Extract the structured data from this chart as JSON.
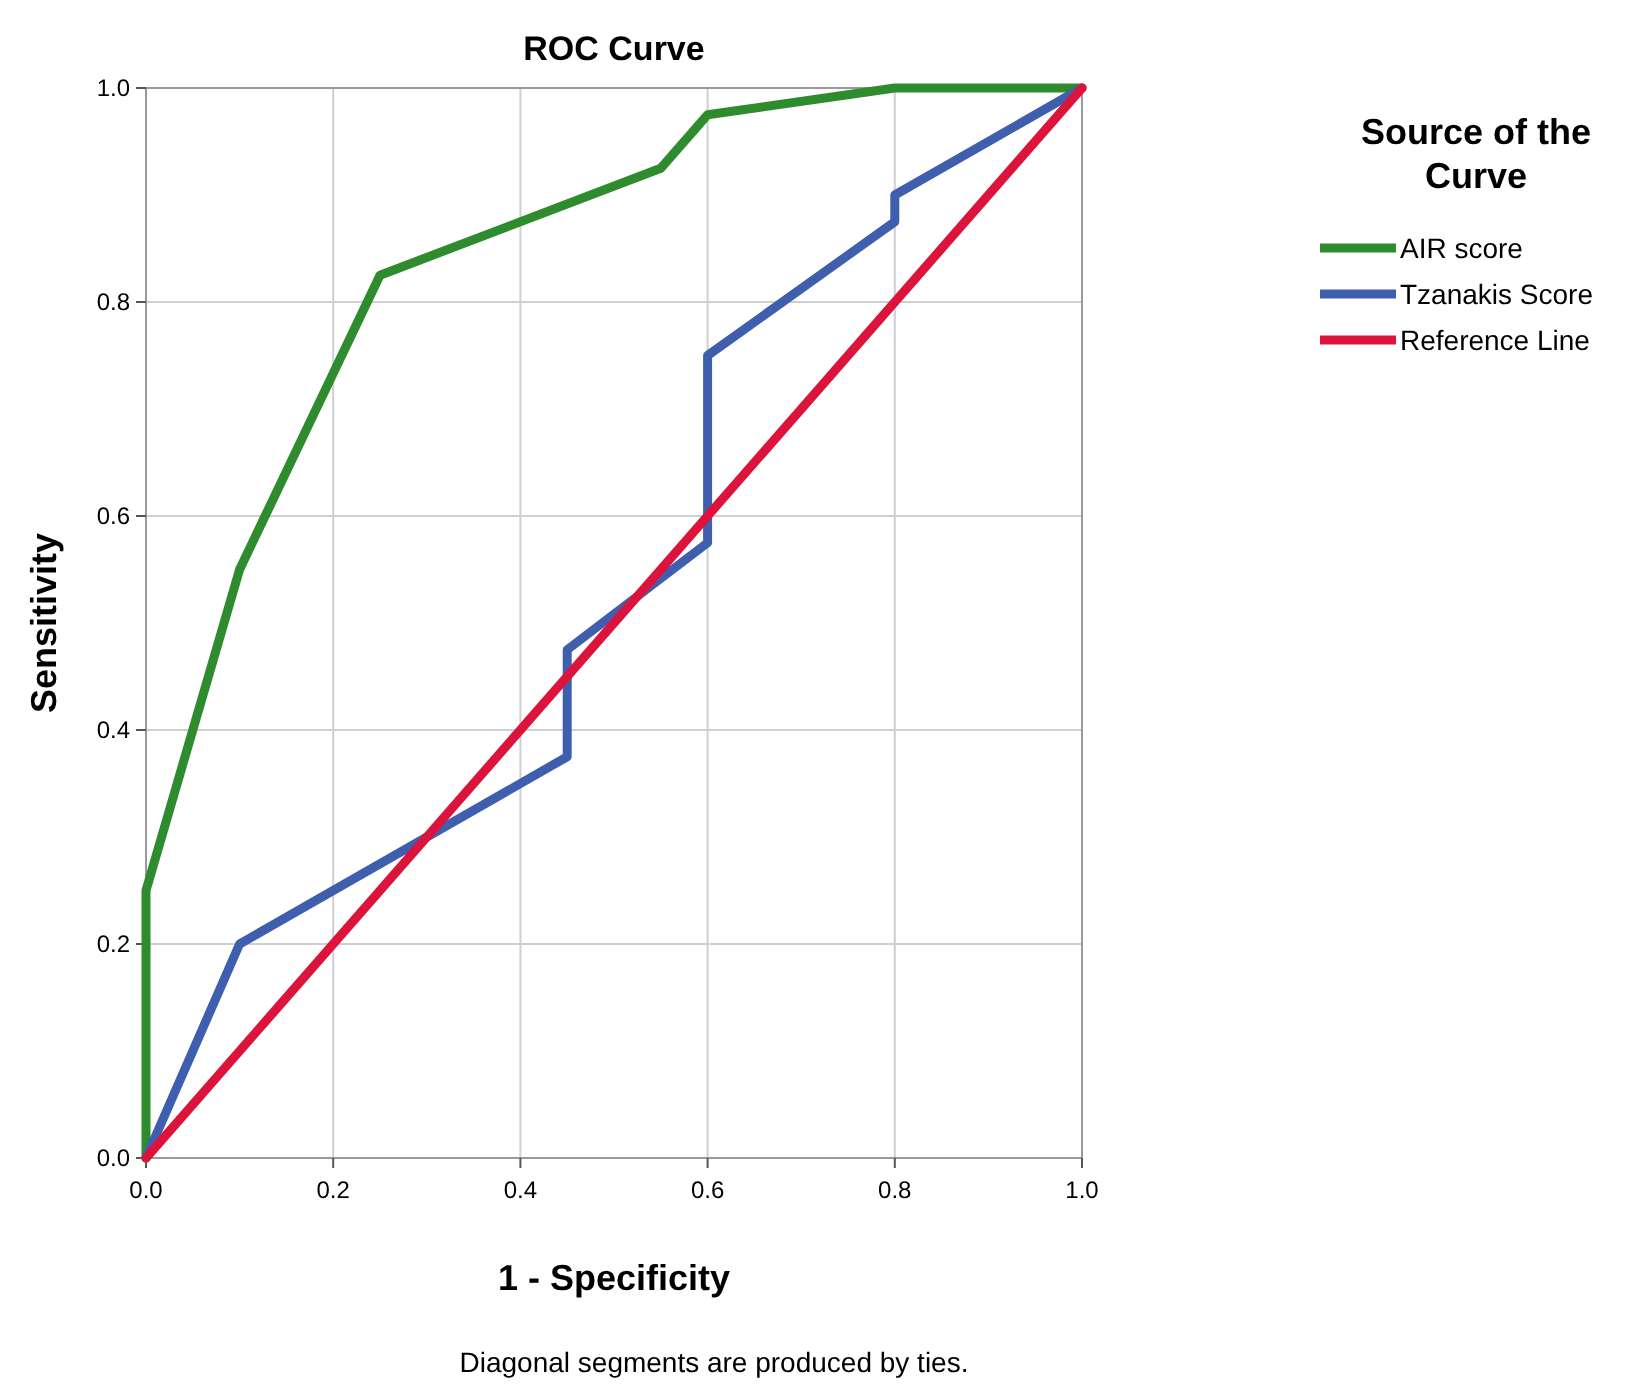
{
  "chart_data": {
    "type": "line",
    "title": "ROC Curve",
    "xlabel": "1 - Specificity",
    "ylabel": "Sensitivity",
    "legend_title": "Source of the Curve",
    "legend": "top right",
    "grid": true,
    "marker": "none",
    "line_style": "solid",
    "xlim": [
      0,
      1
    ],
    "ylim": [
      0,
      1
    ],
    "xticks": [
      {
        "value": 0,
        "label": "0.0"
      },
      0.2,
      0.4,
      0.6,
      0.8,
      {
        "value": 1,
        "label": "1.0"
      }
    ],
    "yticks": [
      {
        "value": 0,
        "label": "0.0"
      },
      0.2,
      0.4,
      0.6,
      0.8,
      {
        "value": 1,
        "label": "1.0"
      }
    ],
    "series": [
      {
        "name": "AIR score",
        "color": "#2e8b2e",
        "x": [
          0,
          0,
          0.1,
          0.25,
          0.55,
          0.6,
          0.8,
          1
        ],
        "values": [
          0,
          0.25,
          0.55,
          0.825,
          0.925,
          0.975,
          1,
          1
        ]
      },
      {
        "name": "Tzanakis Score",
        "color": "#3f5fae",
        "x": [
          0,
          0.1,
          0.45,
          0.45,
          0.6,
          0.6,
          0.8,
          0.8,
          1
        ],
        "values": [
          0,
          0.2,
          0.375,
          0.475,
          0.575,
          0.75,
          0.875,
          0.9,
          1
        ]
      },
      {
        "name": "Reference Line",
        "color": "#dc143c",
        "x": [
          0,
          1
        ],
        "values": [
          0,
          1
        ]
      }
    ],
    "annotations": [
      "Diagonal segments are produced by ties."
    ]
  }
}
